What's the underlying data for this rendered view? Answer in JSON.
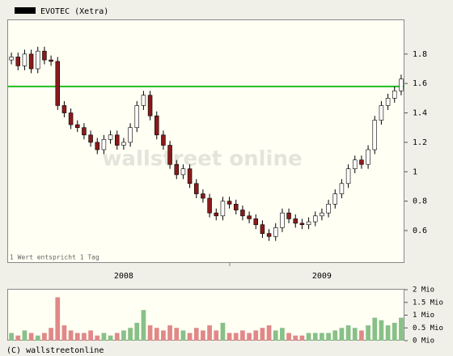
{
  "chart_data": [
    {
      "type": "candlestick",
      "title": "EVOTEC (Xetra)",
      "note": "1 Wert entspricht 1 Tag",
      "watermark": "wallstreet online",
      "categories": [
        null,
        null,
        null,
        null,
        null,
        null,
        null,
        null,
        null,
        null,
        null,
        null,
        null,
        null,
        null,
        null,
        null,
        "2008",
        null,
        null,
        null,
        null,
        null,
        null,
        null,
        null,
        null,
        null,
        null,
        null,
        null,
        null,
        null,
        null,
        null,
        null,
        null,
        null,
        null,
        null,
        null,
        null,
        null,
        null,
        null,
        null,
        null,
        "2009",
        null,
        null,
        null,
        null,
        null,
        null,
        null,
        null,
        null,
        null,
        null,
        null
      ],
      "open": [
        1.76,
        1.78,
        1.72,
        1.8,
        1.7,
        1.82,
        1.76,
        1.75,
        1.45,
        1.4,
        1.32,
        1.3,
        1.25,
        1.2,
        1.15,
        1.22,
        1.25,
        1.18,
        1.2,
        1.3,
        1.45,
        1.52,
        1.38,
        1.25,
        1.18,
        1.05,
        0.98,
        1.02,
        0.92,
        0.85,
        0.82,
        0.72,
        0.7,
        0.8,
        0.78,
        0.74,
        0.7,
        0.68,
        0.64,
        0.58,
        0.56,
        0.62,
        0.72,
        0.68,
        0.65,
        0.64,
        0.66,
        0.7,
        0.72,
        0.78,
        0.85,
        0.92,
        1.02,
        1.08,
        1.05,
        1.15,
        1.35,
        1.45,
        1.5,
        1.55
      ],
      "high": [
        1.81,
        1.81,
        1.83,
        1.83,
        1.85,
        1.85,
        1.79,
        1.78,
        1.48,
        1.43,
        1.35,
        1.33,
        1.28,
        1.23,
        1.25,
        1.28,
        1.28,
        1.23,
        1.33,
        1.48,
        1.55,
        1.55,
        1.41,
        1.28,
        1.21,
        1.08,
        1.05,
        1.05,
        0.95,
        0.88,
        0.85,
        0.75,
        0.83,
        0.83,
        0.81,
        0.77,
        0.73,
        0.71,
        0.67,
        0.61,
        0.65,
        0.75,
        0.75,
        0.71,
        0.68,
        0.69,
        0.73,
        0.75,
        0.81,
        0.88,
        0.95,
        1.05,
        1.11,
        1.11,
        1.18,
        1.38,
        1.48,
        1.53,
        1.58,
        1.66
      ],
      "low": [
        1.73,
        1.69,
        1.69,
        1.67,
        1.67,
        1.73,
        1.72,
        1.42,
        1.37,
        1.29,
        1.27,
        1.22,
        1.17,
        1.12,
        1.12,
        1.19,
        1.15,
        1.15,
        1.17,
        1.27,
        1.42,
        1.35,
        1.22,
        1.15,
        1.02,
        0.95,
        0.95,
        0.89,
        0.82,
        0.79,
        0.69,
        0.67,
        0.67,
        0.75,
        0.71,
        0.67,
        0.65,
        0.61,
        0.55,
        0.53,
        0.53,
        0.59,
        0.65,
        0.62,
        0.61,
        0.61,
        0.63,
        0.67,
        0.69,
        0.75,
        0.82,
        0.89,
        0.99,
        1.02,
        1.02,
        1.12,
        1.32,
        1.42,
        1.47,
        1.52
      ],
      "close": [
        1.78,
        1.72,
        1.8,
        1.7,
        1.82,
        1.76,
        1.75,
        1.45,
        1.4,
        1.32,
        1.3,
        1.25,
        1.2,
        1.15,
        1.22,
        1.25,
        1.18,
        1.2,
        1.3,
        1.45,
        1.52,
        1.38,
        1.25,
        1.18,
        1.05,
        0.98,
        1.02,
        0.92,
        0.85,
        0.82,
        0.72,
        0.7,
        0.8,
        0.78,
        0.74,
        0.7,
        0.68,
        0.64,
        0.58,
        0.56,
        0.62,
        0.72,
        0.68,
        0.65,
        0.64,
        0.66,
        0.7,
        0.72,
        0.78,
        0.85,
        0.92,
        1.02,
        1.08,
        1.05,
        1.15,
        1.35,
        1.45,
        1.5,
        1.55,
        1.63
      ],
      "up_color": "#ffffff",
      "down_color": "#8b1a1a",
      "reference_line": 1.58,
      "reference_color": "#22bb22",
      "ylim": [
        0.38,
        2.03
      ],
      "yticks": [
        0.6,
        0.8,
        1.0,
        1.2,
        1.4,
        1.6,
        1.8
      ]
    },
    {
      "type": "bar",
      "title": null,
      "values": [
        0.3,
        0.2,
        0.4,
        0.3,
        0.2,
        0.3,
        0.5,
        1.7,
        0.6,
        0.4,
        0.3,
        0.3,
        0.4,
        0.2,
        0.3,
        0.2,
        0.3,
        0.4,
        0.5,
        0.7,
        1.2,
        0.6,
        0.5,
        0.4,
        0.6,
        0.5,
        0.4,
        0.3,
        0.5,
        0.4,
        0.6,
        0.4,
        0.7,
        0.3,
        0.3,
        0.4,
        0.3,
        0.4,
        0.5,
        0.6,
        0.4,
        0.5,
        0.3,
        0.2,
        0.2,
        0.3,
        0.3,
        0.3,
        0.3,
        0.4,
        0.5,
        0.6,
        0.5,
        0.4,
        0.6,
        0.9,
        0.8,
        0.6,
        0.7,
        0.9
      ],
      "up_color": "#88c088",
      "down_color": "#e08888",
      "ylim": [
        0,
        2
      ],
      "yticks": [
        {
          "value": 0,
          "label": "0 Mio"
        },
        {
          "value": 0.5,
          "label": "0.5 Mio"
        },
        {
          "value": 1,
          "label": "1 Mio"
        },
        {
          "value": 1.5,
          "label": "1.5 Mio"
        },
        {
          "value": 2,
          "label": "2 Mio"
        }
      ]
    }
  ],
  "footer": "(C) wallstreetonline"
}
